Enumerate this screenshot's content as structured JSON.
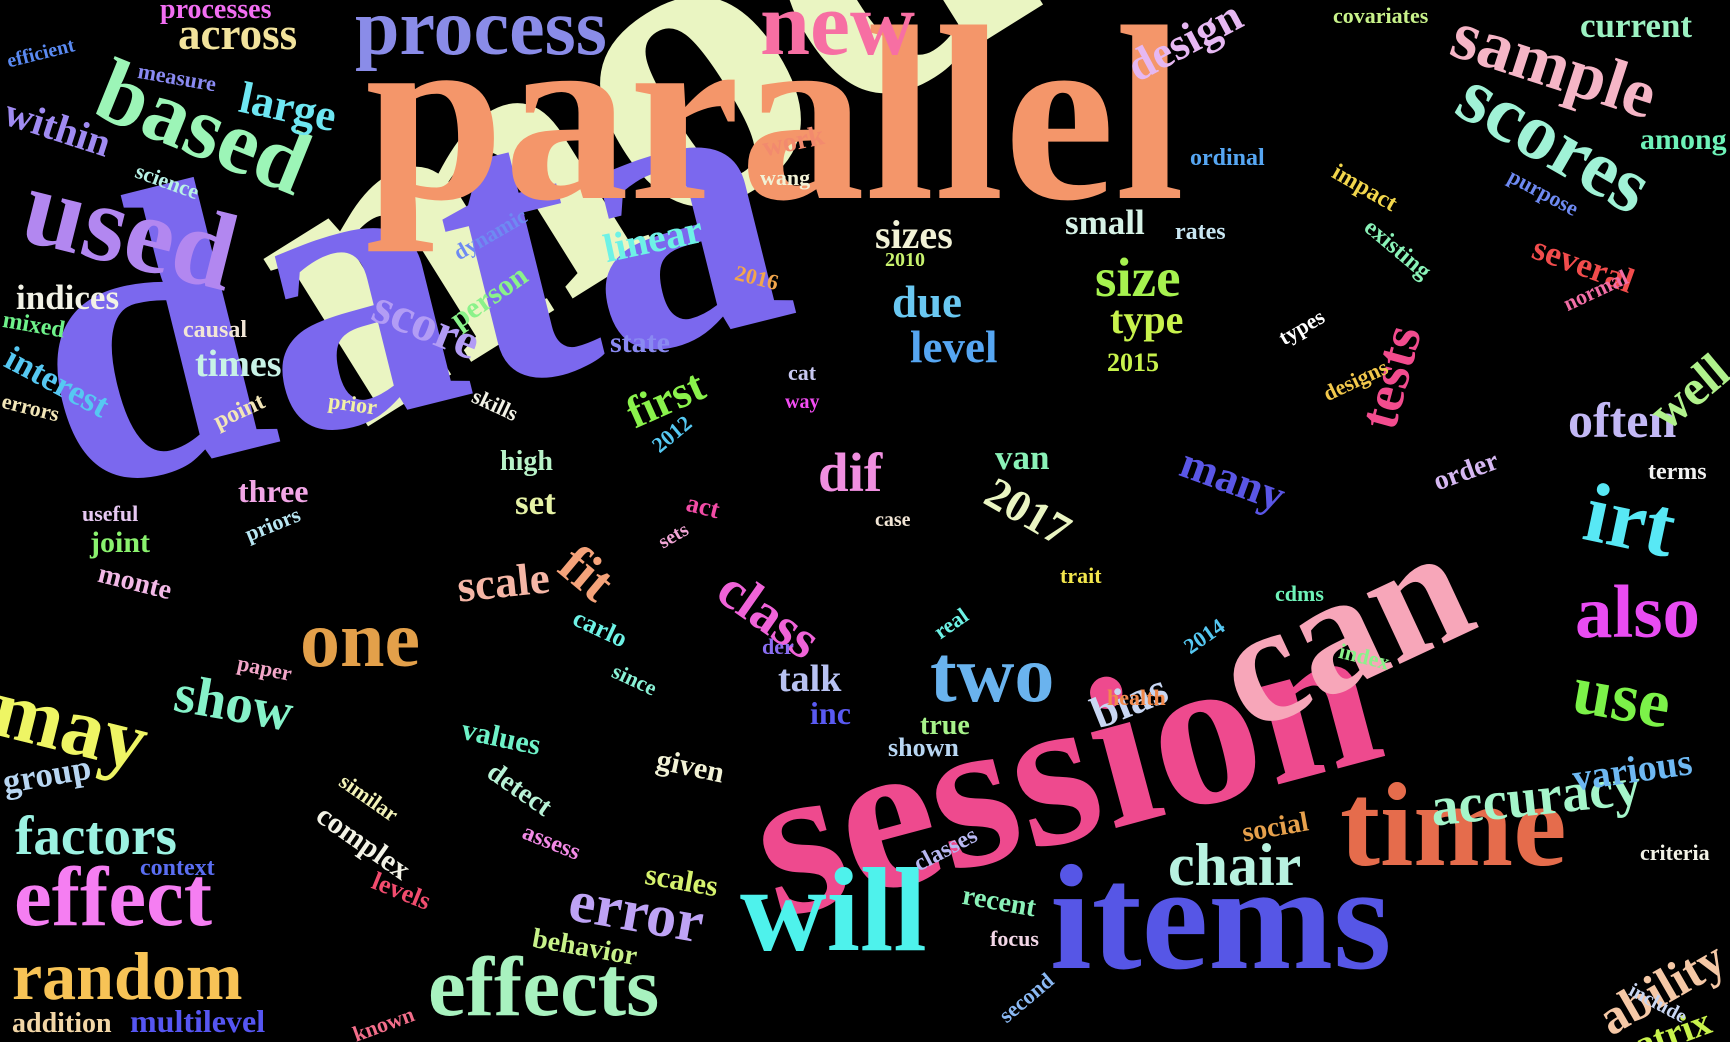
{
  "words": [
    {
      "text": "model",
      "color": "#eaf5c2"
    },
    {
      "text": "data",
      "color": "#7b68ee"
    },
    {
      "text": "parallel",
      "color": "#f4966a"
    },
    {
      "text": "session",
      "color": "#ee4a8e"
    },
    {
      "text": "can",
      "color": "#f7a6b9"
    },
    {
      "text": "items",
      "color": "#5656e6"
    },
    {
      "text": "will",
      "color": "#4ef2ec"
    },
    {
      "text": "time",
      "color": "#e56c4c"
    },
    {
      "text": "process",
      "color": "#8a8ce8"
    },
    {
      "text": "new",
      "color": "#f76fa3"
    },
    {
      "text": "used",
      "color": "#b287f0"
    },
    {
      "text": "based",
      "color": "#9cf5b7"
    },
    {
      "text": "sample",
      "color": "#f5b5c6"
    },
    {
      "text": "scores",
      "color": "#a0f2d6"
    },
    {
      "text": "effects",
      "color": "#a8f2bf"
    },
    {
      "text": "effect",
      "color": "#f57ef2"
    },
    {
      "text": "random",
      "color": "#f7c356"
    },
    {
      "text": "may",
      "color": "#eef564"
    },
    {
      "text": "one",
      "color": "#e3a04a"
    },
    {
      "text": "two",
      "color": "#6ab3ee"
    },
    {
      "text": "also",
      "color": "#e94cf2"
    },
    {
      "text": "use",
      "color": "#7cf249"
    },
    {
      "text": "irt",
      "color": "#58e8f5"
    },
    {
      "text": "accuracy",
      "color": "#a5f5ca"
    },
    {
      "text": "chair",
      "color": "#b8f2e0"
    },
    {
      "text": "error",
      "color": "#bea3f5"
    },
    {
      "text": "factors",
      "color": "#9cf2e2"
    },
    {
      "text": "tests",
      "color": "#f24c8e"
    },
    {
      "text": "class",
      "color": "#f063d8"
    },
    {
      "text": "fit",
      "color": "#f5a37a"
    },
    {
      "text": "score",
      "color": "#b29cf5"
    },
    {
      "text": "size",
      "color": "#a6f24f"
    },
    {
      "text": "show",
      "color": "#86f2c9"
    },
    {
      "text": "ability",
      "color": "#f5c8a6"
    },
    {
      "text": "often",
      "color": "#c3b8f5"
    },
    {
      "text": "well",
      "color": "#b1f28c"
    },
    {
      "text": "dif",
      "color": "#f08fe0"
    },
    {
      "text": "across",
      "color": "#f2e39c"
    },
    {
      "text": "large",
      "color": "#6ee6f2"
    },
    {
      "text": "within",
      "color": "#a08bf2"
    },
    {
      "text": "2017",
      "color": "#eaf5c2"
    },
    {
      "text": "design",
      "color": "#e6b8f2"
    },
    {
      "text": "current",
      "color": "#9cf2c2"
    },
    {
      "text": "level",
      "color": "#56a6f2"
    },
    {
      "text": "due",
      "color": "#6ac8f2"
    },
    {
      "text": "first",
      "color": "#8af24c"
    },
    {
      "text": "scale",
      "color": "#f5b6a6"
    },
    {
      "text": "linear",
      "color": "#6ef2e6"
    },
    {
      "text": "sizes",
      "color": "#f2f2d6"
    },
    {
      "text": "small",
      "color": "#d6f2e6"
    },
    {
      "text": "various",
      "color": "#6eb8f2"
    },
    {
      "text": "bias",
      "color": "#c8d6f2"
    },
    {
      "text": "many",
      "color": "#5a56e6"
    },
    {
      "text": "several",
      "color": "#f24c4c"
    },
    {
      "text": "talk",
      "color": "#b8c2f2"
    },
    {
      "text": "van",
      "color": "#8af2b8"
    },
    {
      "text": "type",
      "color": "#c8f24c"
    },
    {
      "text": "matrix",
      "color": "#c8f24c"
    },
    {
      "text": "among",
      "color": "#6ef2b8"
    },
    {
      "text": "times",
      "color": "#c8f2e6"
    },
    {
      "text": "indices",
      "color": "#f2f2e6"
    },
    {
      "text": "interest",
      "color": "#56c8f2"
    },
    {
      "text": "three",
      "color": "#f2a6e6"
    },
    {
      "text": "joint",
      "color": "#8af26e"
    },
    {
      "text": "monte",
      "color": "#f2b8e6"
    },
    {
      "text": "group",
      "color": "#b8d6f2"
    },
    {
      "text": "addition",
      "color": "#f2d6a6"
    },
    {
      "text": "multilevel",
      "color": "#5656f2"
    },
    {
      "text": "behavior",
      "color": "#c8f28a"
    },
    {
      "text": "scales",
      "color": "#d6f26e"
    },
    {
      "text": "given",
      "color": "#f2f2d6"
    },
    {
      "text": "values",
      "color": "#6ef2c8"
    },
    {
      "text": "detect",
      "color": "#b8f2d6"
    },
    {
      "text": "complex",
      "color": "#f2f2e6"
    },
    {
      "text": "similar",
      "color": "#f2f2b8"
    },
    {
      "text": "assess",
      "color": "#f28ae6"
    },
    {
      "text": "levels",
      "color": "#f24c6e"
    },
    {
      "text": "context",
      "color": "#5a6ef2"
    },
    {
      "text": "known",
      "color": "#f26e8a"
    },
    {
      "text": "second",
      "color": "#8ab8f2"
    },
    {
      "text": "focus",
      "color": "#f2d6e6"
    },
    {
      "text": "recent",
      "color": "#8af2b8"
    },
    {
      "text": "social",
      "color": "#e6a04c"
    },
    {
      "text": "classes",
      "color": "#b8b8f2"
    },
    {
      "text": "shown",
      "color": "#b8d6f2"
    },
    {
      "text": "true",
      "color": "#a6f28a"
    },
    {
      "text": "health",
      "color": "#f28a4c"
    },
    {
      "text": "inc",
      "color": "#5a5af2"
    },
    {
      "text": "der",
      "color": "#8a6ef2"
    },
    {
      "text": "since",
      "color": "#8af2d6"
    },
    {
      "text": "paper",
      "color": "#f2a6c8"
    },
    {
      "text": "carlo",
      "color": "#6ef2e6"
    },
    {
      "text": "sets",
      "color": "#f2a6d6"
    },
    {
      "text": "act",
      "color": "#f24ca6"
    },
    {
      "text": "set",
      "color": "#e6f2a6"
    },
    {
      "text": "high",
      "color": "#b8f2c8"
    },
    {
      "text": "case",
      "color": "#f2e6d6"
    },
    {
      "text": "trait",
      "color": "#f2e64c"
    },
    {
      "text": "real",
      "color": "#6ef2e6"
    },
    {
      "text": "2014",
      "color": "#56c8f2"
    },
    {
      "text": "cdms",
      "color": "#6ef2b8"
    },
    {
      "text": "index",
      "color": "#8af28a"
    },
    {
      "text": "criteria",
      "color": "#f2f2e6"
    },
    {
      "text": "include",
      "color": "#c8d6f2"
    },
    {
      "text": "terms",
      "color": "#f2f2f2"
    },
    {
      "text": "order",
      "color": "#d6b8f2"
    },
    {
      "text": "designs",
      "color": "#f2c84c"
    },
    {
      "text": "types",
      "color": "#ffffff"
    },
    {
      "text": "2015",
      "color": "#c8f24c"
    },
    {
      "text": "impact",
      "color": "#f2d64c"
    },
    {
      "text": "existing",
      "color": "#8af2b8"
    },
    {
      "text": "normal",
      "color": "#f26ea6"
    },
    {
      "text": "purpose",
      "color": "#6e8af2"
    },
    {
      "text": "rates",
      "color": "#c8e6f2"
    },
    {
      "text": "ordinal",
      "color": "#56a6f2"
    },
    {
      "text": "wang",
      "color": "#f2f2d6"
    },
    {
      "text": "work",
      "color": "#f28a6e"
    },
    {
      "text": "covariates",
      "color": "#c8f28a"
    },
    {
      "text": "processes",
      "color": "#f26ef2"
    },
    {
      "text": "efficient",
      "color": "#5a8af2"
    },
    {
      "text": "measure",
      "color": "#8a8af2"
    },
    {
      "text": "science",
      "color": "#b8f2e6"
    },
    {
      "text": "dynamic",
      "color": "#6e8af2"
    },
    {
      "text": "person",
      "color": "#8af28a"
    },
    {
      "text": "2010",
      "color": "#c8f26e"
    },
    {
      "text": "2016",
      "color": "#f2a64c"
    },
    {
      "text": "mixed",
      "color": "#6ef28a"
    },
    {
      "text": "causal",
      "color": "#f2e6d6"
    },
    {
      "text": "errors",
      "color": "#f2e6b8"
    },
    {
      "text": "point",
      "color": "#f2e6b8"
    },
    {
      "text": "prior",
      "color": "#f2f2a6"
    },
    {
      "text": "skills",
      "color": "#f2f2e6"
    },
    {
      "text": "state",
      "color": "#8a8af2"
    },
    {
      "text": "2012",
      "color": "#56c8f2"
    },
    {
      "text": "cat",
      "color": "#c8c8f2"
    },
    {
      "text": "way",
      "color": "#f24cf2"
    },
    {
      "text": "priors",
      "color": "#b8e6f2"
    },
    {
      "text": "useful",
      "color": "#e6c8f2"
    }
  ]
}
